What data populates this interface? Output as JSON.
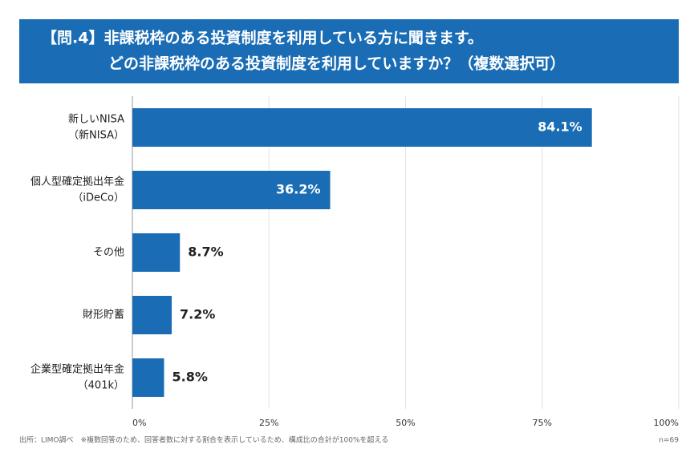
{
  "chart_data": {
    "type": "hbar",
    "title": [
      "【問.4】非課税枠のある投資制度を利用している方に聞きます。",
      "どの非課税枠のある投資制度を利用していますか？（複数選択可）"
    ],
    "categories": [
      [
        "新しいNISA",
        "（新NISA）"
      ],
      [
        "個人型確定拠出年金",
        "（iDeCo）"
      ],
      [
        "その他"
      ],
      [
        "財形貯蓄"
      ],
      [
        "企業型確定拠出年金",
        "（401k）"
      ]
    ],
    "values": [
      84.1,
      36.2,
      8.7,
      7.2,
      5.8
    ],
    "value_labels": [
      "84.1%",
      "36.2%",
      "8.7%",
      "7.2%",
      "5.8%"
    ],
    "color": "#1a6db5",
    "xlim": [
      0,
      100
    ],
    "xticks": [
      {
        "value": 0,
        "label": "0%"
      },
      {
        "value": 25,
        "label": "25%"
      },
      {
        "value": 50,
        "label": "50%"
      },
      {
        "value": 75,
        "label": "75%"
      },
      {
        "value": 100,
        "label": "100%"
      }
    ],
    "grid": true,
    "source": "出所：LIMO調べ　※複数回答のため、回答者数に対する割合を表示しているため、構成比の合計が100%を超える",
    "note": "n=69"
  }
}
